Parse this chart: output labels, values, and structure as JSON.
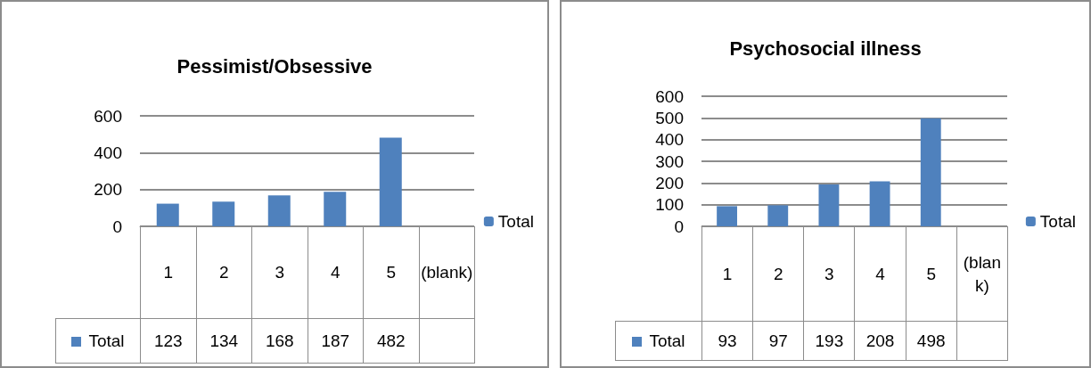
{
  "chart_data": [
    {
      "type": "bar",
      "title": "Pessimist/Obsessive",
      "categories": [
        "1",
        "2",
        "3",
        "4",
        "5",
        "(blank)"
      ],
      "series": [
        {
          "name": "Total",
          "color": "#4f81bd",
          "values": [
            123,
            134,
            168,
            187,
            482,
            null
          ]
        }
      ],
      "ylim": [
        0,
        600
      ],
      "yticks": [
        0,
        200,
        400,
        600
      ],
      "grid": "y",
      "legend": "right",
      "data_labels": true
    },
    {
      "type": "bar",
      "title": "Psychosocial illness",
      "categories": [
        "1",
        "2",
        "3",
        "4",
        "5",
        "(blank)"
      ],
      "series": [
        {
          "name": "Total",
          "color": "#4f81bd",
          "values": [
            93,
            97,
            193,
            208,
            498,
            null
          ]
        }
      ],
      "ylim": [
        0,
        600
      ],
      "yticks": [
        0,
        100,
        200,
        300,
        400,
        500,
        600
      ],
      "grid": "y",
      "legend": "right",
      "data_labels": true
    }
  ]
}
